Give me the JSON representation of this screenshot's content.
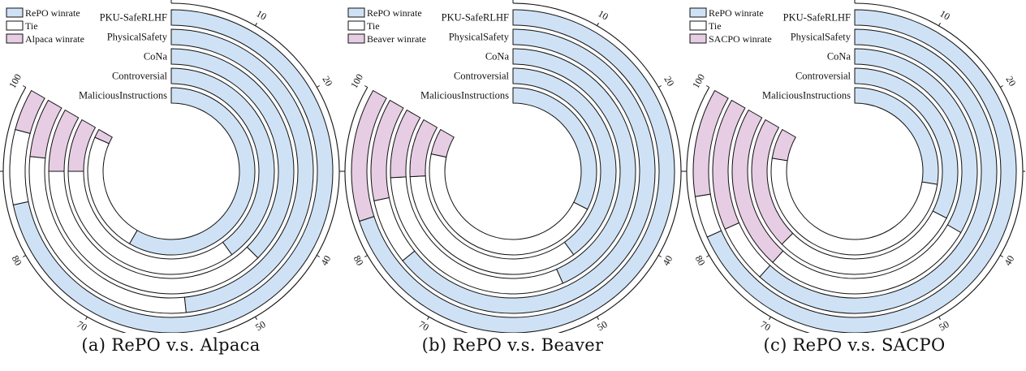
{
  "chart_data": [
    {
      "type": "radial-stacked-bar",
      "caption": "(a) RePO v.s. Alpaca",
      "legend": [
        "RePO winrate",
        "Tie",
        "Alpaca winrate"
      ],
      "colors": [
        "#cfe2f5",
        "#ffffff",
        "#e6cde3"
      ],
      "categories": [
        "PKU-SafeRLHF",
        "PhysicalSafety",
        "CoNa",
        "Controversial",
        "MaliciousInstructions"
      ],
      "series": [
        {
          "name": "RePO winrate",
          "values": [
            86,
            58,
            45,
            48,
            70
          ]
        },
        {
          "name": "Tie",
          "values": [
            9,
            34,
            45,
            42,
            28
          ]
        },
        {
          "name": "Alpaca winrate",
          "values": [
            5,
            8,
            10,
            10,
            2
          ]
        }
      ],
      "ticks": [
        0,
        10,
        20,
        30,
        40,
        50,
        60,
        70,
        80,
        90,
        100
      ],
      "axis_range": [
        0,
        100
      ]
    },
    {
      "type": "radial-stacked-bar",
      "caption": "(b) RePO v.s. Beaver",
      "legend": [
        "RePO winrate",
        "Tie",
        "Beaver winrate"
      ],
      "colors": [
        "#cfe2f5",
        "#ffffff",
        "#e6cde3"
      ],
      "categories": [
        "PKU-SafeRLHF",
        "PhysicalSafety",
        "CoNa",
        "Controversial",
        "MaliciousInstructions"
      ],
      "series": [
        {
          "name": "RePO winrate",
          "values": [
            84,
            77,
            52,
            48,
            39
          ]
        },
        {
          "name": "Tie",
          "values": [
            0,
            9,
            37,
            41,
            55
          ]
        },
        {
          "name": "Beaver winrate",
          "values": [
            16,
            14,
            11,
            11,
            6
          ]
        }
      ],
      "ticks": [
        0,
        10,
        20,
        30,
        40,
        50,
        60,
        70,
        80,
        90,
        100
      ],
      "axis_range": [
        0,
        100
      ]
    },
    {
      "type": "radial-stacked-bar",
      "caption": "(c) RePO v.s. SACPO",
      "legend": [
        "RePO winrate",
        "Tie",
        "SACPO winrate"
      ],
      "colors": [
        "#cfe2f5",
        "#ffffff",
        "#e6cde3"
      ],
      "categories": [
        "PKU-SafeRLHF",
        "PhysicalSafety",
        "CoNa",
        "Controversial",
        "MaliciousInstructions"
      ],
      "series": [
        {
          "name": "RePO winrate",
          "values": [
            82,
            74,
            40,
            39,
            33
          ]
        },
        {
          "name": "Tie",
          "values": [
            5,
            8,
            34,
            36,
            60
          ]
        },
        {
          "name": "SACPO winrate",
          "values": [
            13,
            18,
            26,
            25,
            7
          ]
        }
      ],
      "ticks": [
        0,
        10,
        20,
        30,
        40,
        50,
        60,
        70,
        80,
        90,
        100
      ],
      "axis_range": [
        0,
        100
      ]
    }
  ]
}
